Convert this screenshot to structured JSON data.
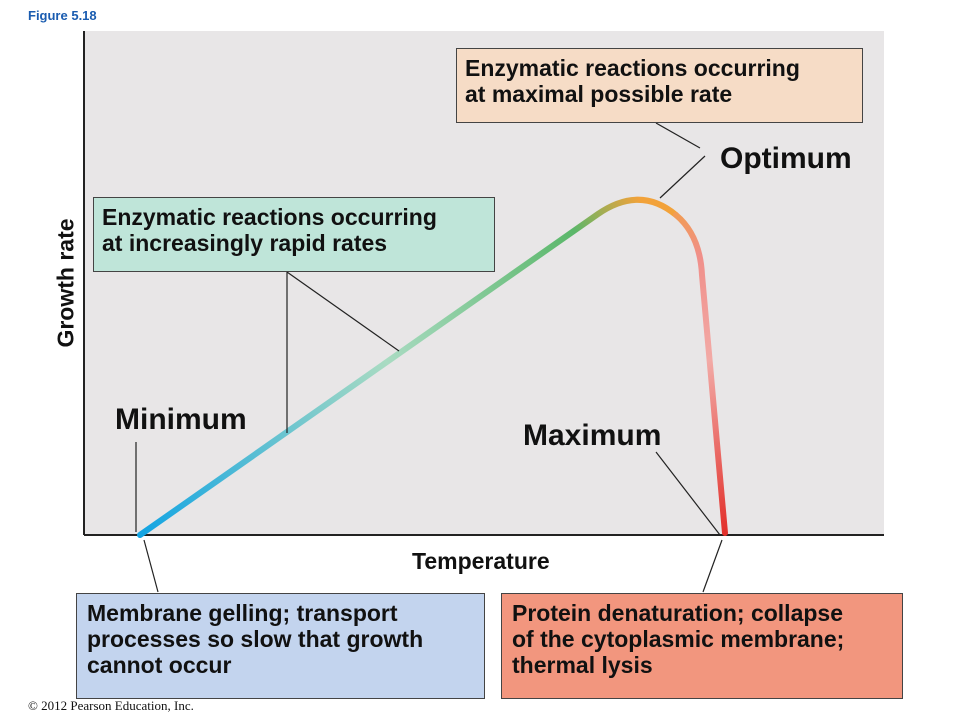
{
  "figure_label": "Figure 5.18",
  "copyright": "© 2012 Pearson Education, Inc.",
  "axes": {
    "x_label": "Temperature",
    "y_label": "Growth rate"
  },
  "labels": {
    "optimum": "Optimum",
    "minimum": "Minimum",
    "maximum": "Maximum"
  },
  "boxes": {
    "optimum": [
      "Enzymatic reactions occurring",
      "at maximal possible rate"
    ],
    "increasing": [
      "Enzymatic reactions occurring",
      "at increasingly rapid rates"
    ],
    "membrane": [
      "Membrane gelling; transport",
      "processes so slow that growth",
      "cannot occur"
    ],
    "denature": [
      "Protein denaturation; collapse",
      "of the cytoplasmic membrane;",
      "thermal lysis"
    ]
  },
  "colors": {
    "plot_background": "#e8e6e7",
    "optimum_box": "#f6dcc6",
    "increasing_box": "#bfe5d9",
    "membrane_box": "#c3d4ee",
    "denature_box": "#f2967e",
    "curve_cold": "#1aa7e0",
    "curve_mid": "#5cb86a",
    "curve_optimum": "#f2a23a",
    "curve_hot": "#e23b2f",
    "figure_label": "#1a5cb0"
  }
}
